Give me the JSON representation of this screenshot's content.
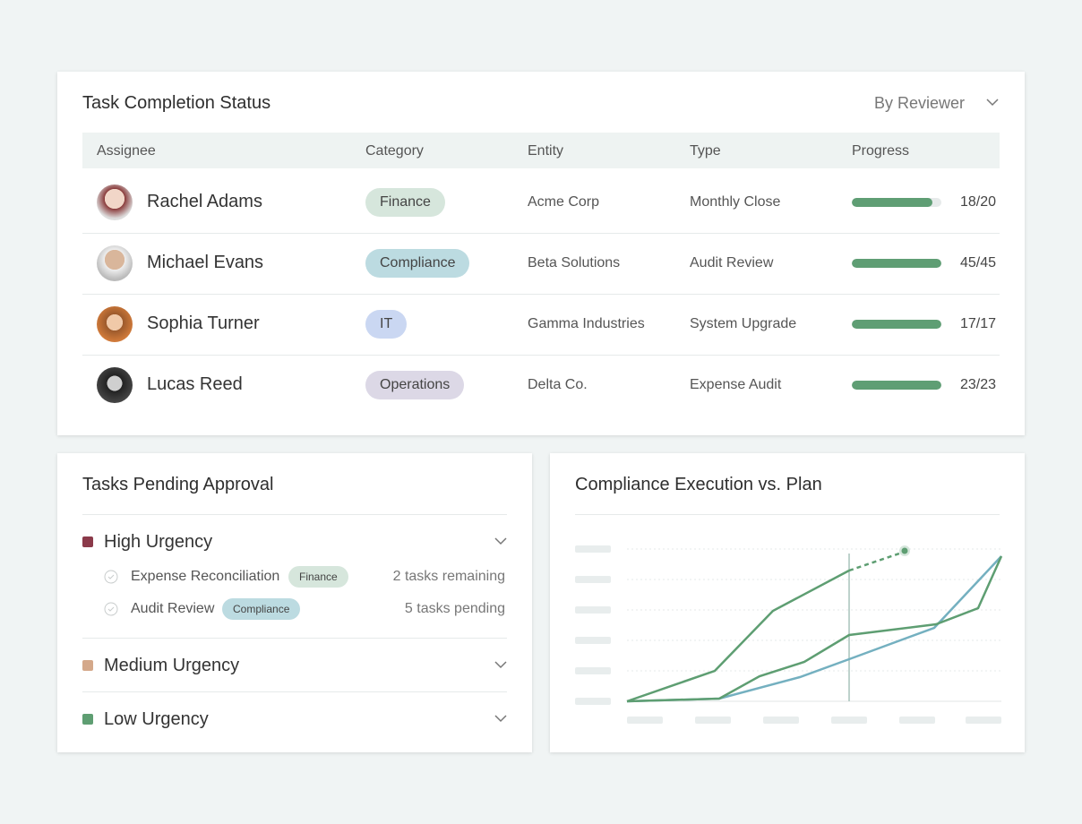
{
  "task_completion": {
    "title": "Task Completion Status",
    "filter": "By Reviewer",
    "columns": [
      "Assignee",
      "Category",
      "Entity",
      "Type",
      "Progress"
    ],
    "rows": [
      {
        "assignee": "Rachel Adams",
        "category": "Finance",
        "entity": "Acme Corp",
        "type": "Monthly Close",
        "progress": "18/20"
      },
      {
        "assignee": "Michael Evans",
        "category": "Compliance",
        "entity": "Beta Solutions",
        "type": "Audit Review",
        "progress": "45/45"
      },
      {
        "assignee": "Sophia Turner",
        "category": "IT",
        "entity": "Gamma Industries",
        "type": "System Upgrade",
        "progress": "17/17"
      },
      {
        "assignee": "Lucas Reed",
        "category": "Operations",
        "entity": "Delta Co.",
        "type": "Expense Audit",
        "progress": "23/23"
      }
    ]
  },
  "pending": {
    "title": "Tasks Pending Approval",
    "groups": [
      {
        "name": "High Urgency",
        "items": [
          {
            "name": "Expense Reconciliation",
            "tag": "Finance",
            "status": "2 tasks remaining"
          },
          {
            "name": "Audit Review",
            "tag": "Compliance",
            "status": "5 tasks pending"
          }
        ]
      },
      {
        "name": "Medium Urgency"
      },
      {
        "name": "Low Urgency"
      }
    ]
  },
  "compliance": {
    "title": "Compliance Execution vs. Plan"
  }
}
